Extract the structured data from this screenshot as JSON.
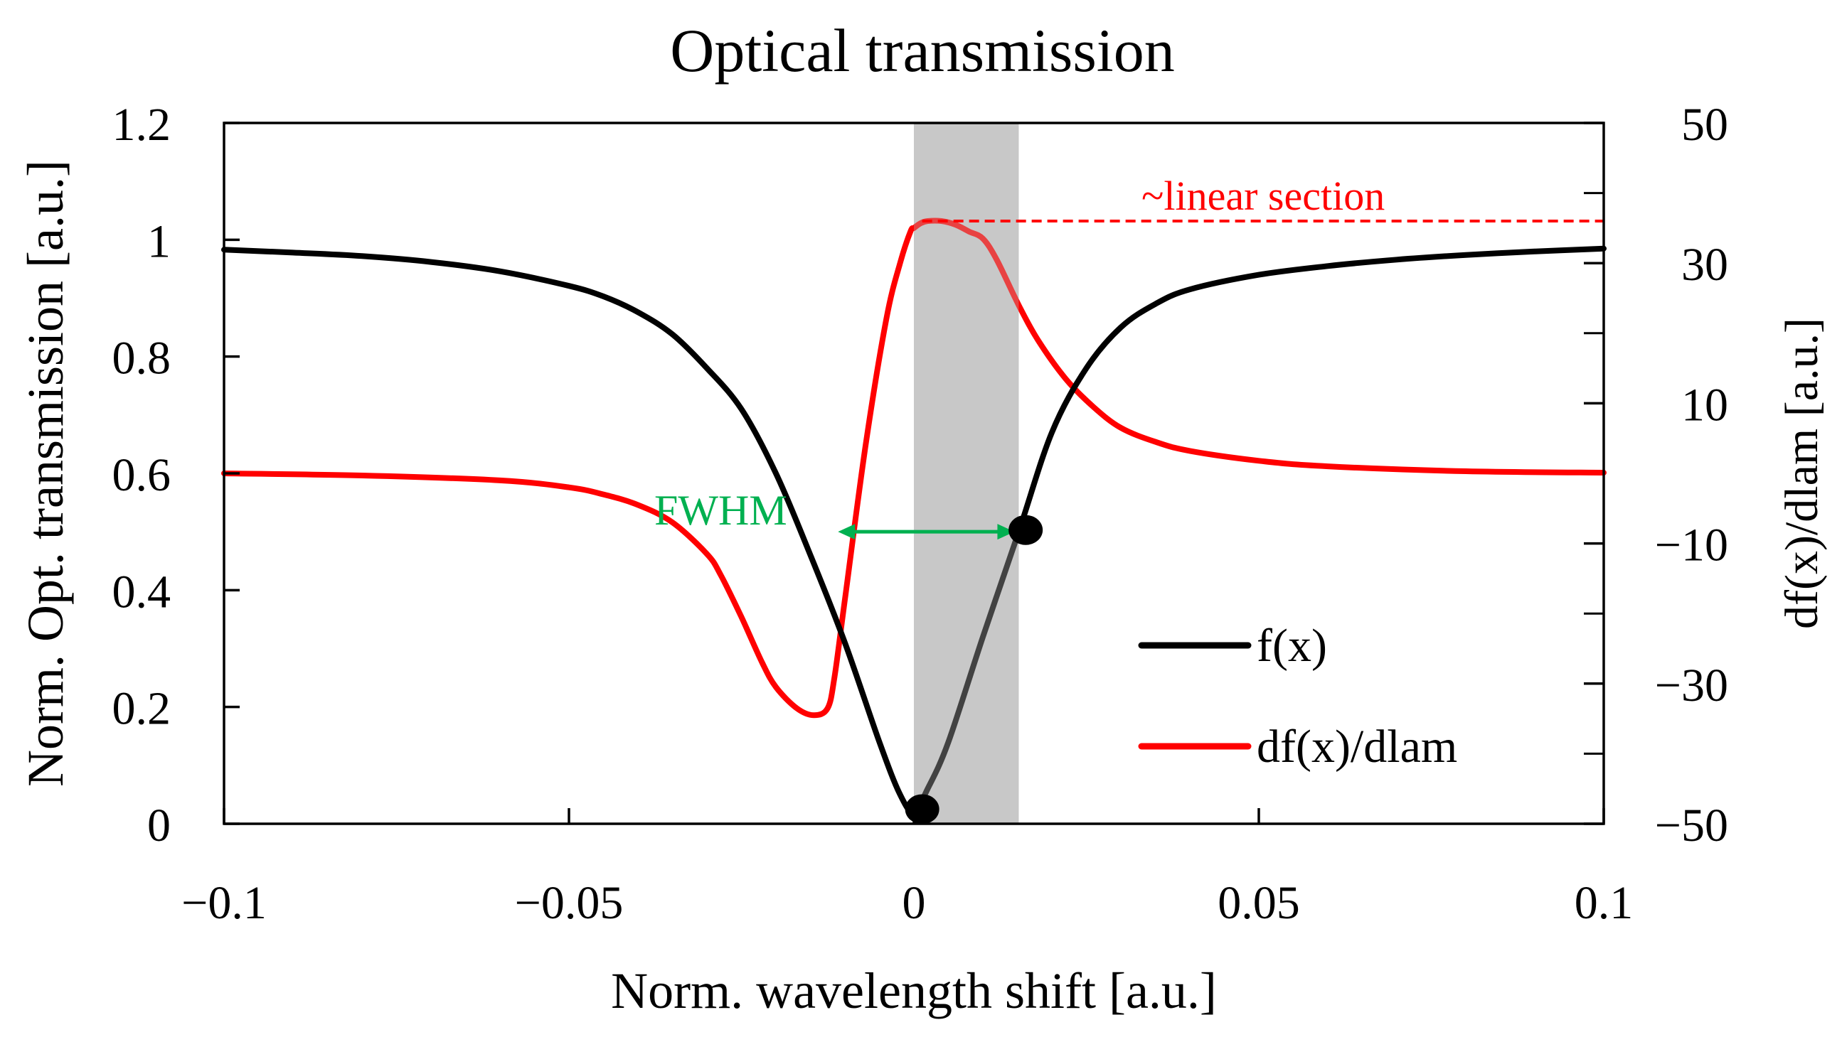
{
  "chart_data": {
    "type": "line",
    "title": "Optical transmission",
    "xlabel": "Norm. wavelength shift [a.u.]",
    "ylabel": "Norm. Opt. transmission [a.u.]",
    "y2label": "df(x)/dlam [a.u.]",
    "xlim": [
      -0.1,
      0.1
    ],
    "ylim": [
      0,
      1.2
    ],
    "y2lim": [
      -50,
      50
    ],
    "x_tick_labels": [
      "−0.1",
      "−0.05",
      "0",
      "0.05",
      "0.1"
    ],
    "x_tick_values": [
      -0.1,
      -0.05,
      0,
      0.05,
      0.1
    ],
    "y_tick_labels": [
      "0",
      "0.2",
      "0.4",
      "0.6",
      "0.8",
      "1",
      "1.2"
    ],
    "y_tick_values": [
      0,
      0.2,
      0.4,
      0.6,
      0.8,
      1.0,
      1.2
    ],
    "y2_tick_labels": [
      "−50",
      "−30",
      "−10",
      "10",
      "30",
      "50"
    ],
    "y2_tick_values": [
      -50,
      -30,
      -10,
      10,
      30,
      50
    ],
    "y2_minor_tick_values": [
      -40,
      -20,
      0,
      20,
      40
    ],
    "shaded_region": {
      "x_start": 0,
      "x_end": 0.0152,
      "color": "#bdbdbd"
    },
    "series": [
      {
        "name": "f(x)",
        "axis": "left",
        "color": "#000000",
        "x": [
          -0.1,
          -0.09,
          -0.08,
          -0.07,
          -0.06,
          -0.05,
          -0.045,
          -0.04,
          -0.035,
          -0.03,
          -0.025,
          -0.02,
          -0.015,
          -0.01,
          -0.005,
          -0.002,
          0,
          0.002,
          0.005,
          0.01,
          0.0152,
          0.02,
          0.025,
          0.03,
          0.035,
          0.04,
          0.05,
          0.06,
          0.07,
          0.08,
          0.09,
          0.1
        ],
        "values": [
          0.983,
          0.978,
          0.972,
          0.962,
          0.946,
          0.921,
          0.903,
          0.876,
          0.838,
          0.78,
          0.71,
          0.6,
          0.46,
          0.31,
          0.14,
          0.05,
          0.02,
          0.06,
          0.14,
          0.32,
          0.5,
          0.67,
          0.78,
          0.85,
          0.89,
          0.915,
          0.94,
          0.955,
          0.966,
          0.974,
          0.98,
          0.985
        ]
      },
      {
        "name": "df(x)/dlam",
        "axis": "right",
        "color": "#ff0000",
        "x": [
          -0.1,
          -0.08,
          -0.06,
          -0.05,
          -0.045,
          -0.04,
          -0.035,
          -0.03,
          -0.028,
          -0.025,
          -0.022,
          -0.02,
          -0.017,
          -0.0145,
          -0.0125,
          -0.0115,
          -0.01,
          -0.007,
          -0.004,
          -0.002,
          -0.0005,
          0,
          0.001,
          0.002,
          0.004,
          0.006,
          0.008,
          0.01,
          0.012,
          0.0152,
          0.018,
          0.022,
          0.026,
          0.03,
          0.035,
          0.04,
          0.05,
          0.06,
          0.08,
          0.1
        ],
        "values": [
          0,
          -0.3,
          -1,
          -2,
          -3,
          -4.5,
          -7,
          -11.5,
          -14.5,
          -20.5,
          -27,
          -30.5,
          -33.5,
          -34.5,
          -33.5,
          -29,
          -18,
          4,
          22,
          30,
          34.5,
          35,
          35.7,
          36,
          36,
          35.5,
          34.5,
          33.5,
          30.5,
          24,
          19,
          13.5,
          9.5,
          6.5,
          4.5,
          3.2,
          1.8,
          1,
          0.3,
          0.1
        ]
      }
    ],
    "linear_section": {
      "label": "~linear section",
      "x_start": 0.0012,
      "x_end": 0.1,
      "y2_value": 36,
      "color": "#ff0000"
    },
    "fwhm": {
      "label": "FWHM",
      "x_start": -0.011,
      "x_end": 0.0152,
      "y_value": 0.5,
      "color": "#00b050"
    },
    "markers": [
      {
        "x": 0.0012,
        "y": 0.025
      },
      {
        "x": 0.0162,
        "y": 0.503
      }
    ],
    "legend": {
      "position": "bottom-right",
      "items": [
        {
          "label": "f(x)",
          "color": "#000000"
        },
        {
          "label": "df(x)/dlam",
          "color": "#ff0000"
        }
      ]
    }
  }
}
